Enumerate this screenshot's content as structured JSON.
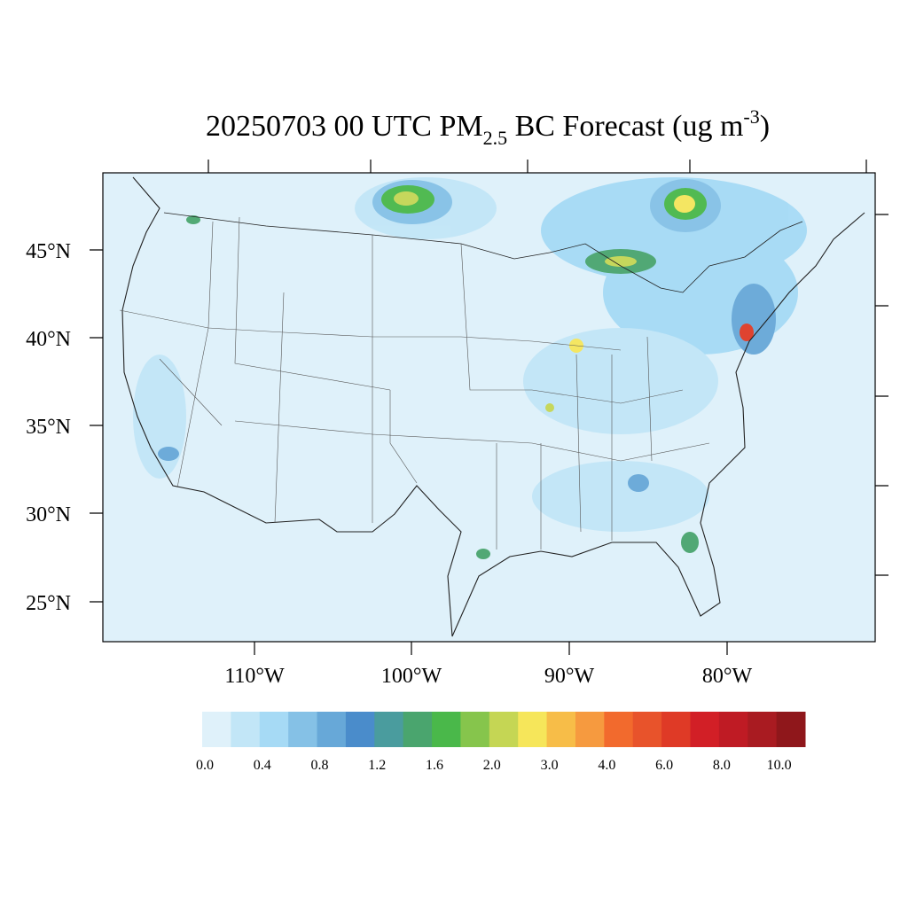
{
  "title": {
    "main": "20250703 00 UTC PM",
    "subscript": "2.5",
    "middle": " BC Forecast (ug m",
    "superscript": "-3",
    "end": ")"
  },
  "latitude_labels": [
    "45°N",
    "40°N",
    "35°N",
    "30°N",
    "25°N"
  ],
  "longitude_labels": [
    "110°W",
    "100°W",
    "90°W",
    "80°W"
  ],
  "colorbar": {
    "colors": [
      "#dff1fa",
      "#c2e6f7",
      "#a6daf5",
      "#85c1e6",
      "#67a8d8",
      "#4a8ccb",
      "#4a9c9e",
      "#4aa56e",
      "#4ab84a",
      "#86c54c",
      "#c5d654",
      "#f6e65a",
      "#f7bd48",
      "#f69a3f",
      "#f26a2d",
      "#e8532b",
      "#df3a26",
      "#d21f26",
      "#bf1b24",
      "#a91b21",
      "#8f171b"
    ],
    "labels": [
      "0.0",
      "0.4",
      "0.8",
      "1.2",
      "1.6",
      "2.0",
      "3.0",
      "4.0",
      "6.0",
      "8.0",
      "10.0"
    ]
  }
}
